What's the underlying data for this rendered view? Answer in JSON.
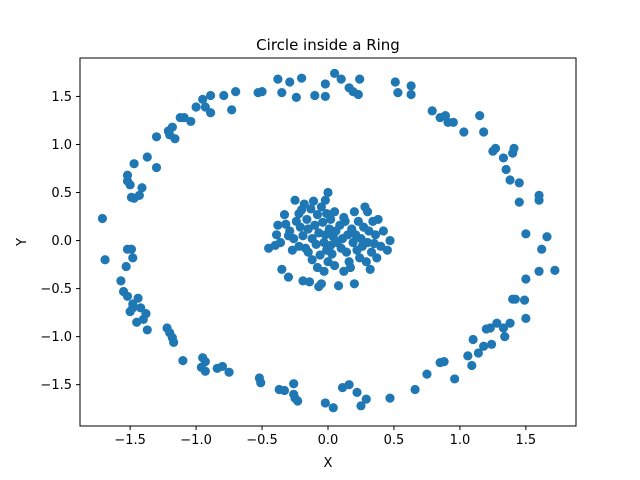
{
  "chart_data": {
    "type": "scatter",
    "title": "Circle inside a Ring",
    "xlabel": "X",
    "ylabel": "Y",
    "xlim": [
      -1.88,
      1.88
    ],
    "ylim": [
      -1.93,
      1.9
    ],
    "xticks": [
      -1.5,
      -1.0,
      -0.5,
      0.0,
      0.5,
      1.0,
      1.5
    ],
    "yticks": [
      -1.5,
      -1.0,
      -0.5,
      0.0,
      0.5,
      1.0,
      1.5
    ],
    "xtick_labels": [
      "−1.5",
      "−1.0",
      "−0.5",
      "0.0",
      "0.5",
      "1.0",
      "1.5"
    ],
    "ytick_labels": [
      "−1.5",
      "−1.0",
      "−0.5",
      "0.0",
      "0.5",
      "1.0",
      "1.5"
    ],
    "grid": false,
    "marker_color": "#1f77b4",
    "series": [
      {
        "points": [
          [
            -1.71,
            0.23
          ],
          [
            -1.69,
            -0.2
          ],
          [
            -1.57,
            -0.42
          ],
          [
            -1.55,
            -0.53
          ],
          [
            -1.53,
            -0.27
          ],
          [
            -1.52,
            -0.09
          ],
          [
            -1.49,
            -0.09
          ],
          [
            -1.48,
            -0.18
          ],
          [
            -1.52,
            0.68
          ],
          [
            -1.52,
            0.62
          ],
          [
            -1.5,
            0.58
          ],
          [
            -1.49,
            0.45
          ],
          [
            -1.47,
            0.44
          ],
          [
            -1.43,
            0.47
          ],
          [
            -1.41,
            0.55
          ],
          [
            -1.47,
            0.8
          ],
          [
            -1.52,
            -0.58
          ],
          [
            -1.48,
            -0.66
          ],
          [
            -1.44,
            -0.6
          ],
          [
            -1.42,
            -0.7
          ],
          [
            -1.5,
            -0.74
          ],
          [
            -1.48,
            -0.7
          ],
          [
            -1.45,
            -0.85
          ],
          [
            -1.4,
            -0.82
          ],
          [
            -1.38,
            -0.76
          ],
          [
            -1.37,
            -0.93
          ],
          [
            -1.37,
            0.87
          ],
          [
            -1.3,
            0.76
          ],
          [
            -1.3,
            1.08
          ],
          [
            -1.21,
            1.14
          ],
          [
            -1.18,
            1.18
          ],
          [
            -1.2,
            1.1
          ],
          [
            -1.16,
            1.06
          ],
          [
            -1.12,
            1.28
          ],
          [
            -1.09,
            1.28
          ],
          [
            -1.04,
            1.24
          ],
          [
            -1.0,
            1.39
          ],
          [
            -0.95,
            1.47
          ],
          [
            -0.93,
            1.39
          ],
          [
            -0.89,
            1.33
          ],
          [
            -0.89,
            1.51
          ],
          [
            -0.79,
            1.51
          ],
          [
            -0.73,
            1.36
          ],
          [
            -0.7,
            1.55
          ],
          [
            -0.53,
            1.54
          ],
          [
            -0.5,
            1.55
          ],
          [
            -0.38,
            1.68
          ],
          [
            -0.35,
            1.54
          ],
          [
            -0.29,
            1.65
          ],
          [
            -0.24,
            1.49
          ],
          [
            -0.2,
            1.69
          ],
          [
            -0.1,
            1.51
          ],
          [
            -0.02,
            1.5
          ],
          [
            -0.02,
            1.63
          ],
          [
            0.05,
            1.74
          ],
          [
            0.1,
            1.68
          ],
          [
            0.16,
            1.59
          ],
          [
            0.19,
            1.55
          ],
          [
            0.24,
            1.68
          ],
          [
            0.23,
            1.52
          ],
          [
            0.51,
            1.65
          ],
          [
            0.53,
            1.54
          ],
          [
            0.63,
            1.61
          ],
          [
            0.63,
            1.52
          ],
          [
            0.79,
            1.35
          ],
          [
            0.85,
            1.28
          ],
          [
            0.89,
            1.3
          ],
          [
            0.91,
            1.23
          ],
          [
            0.95,
            1.23
          ],
          [
            1.03,
            1.13
          ],
          [
            1.15,
            1.3
          ],
          [
            1.18,
            1.13
          ],
          [
            1.25,
            0.93
          ],
          [
            1.27,
            0.96
          ],
          [
            1.33,
            0.86
          ],
          [
            1.35,
            0.74
          ],
          [
            1.38,
            0.63
          ],
          [
            1.4,
            0.91
          ],
          [
            1.41,
            0.96
          ],
          [
            1.45,
            0.6
          ],
          [
            1.45,
            0.4
          ],
          [
            1.5,
            0.07
          ],
          [
            1.6,
            0.47
          ],
          [
            1.6,
            0.42
          ],
          [
            1.62,
            -0.09
          ],
          [
            1.6,
            -0.32
          ],
          [
            1.66,
            0.04
          ],
          [
            1.72,
            -0.31
          ],
          [
            -1.22,
            -0.91
          ],
          [
            -1.2,
            -0.96
          ],
          [
            -1.18,
            -1.01
          ],
          [
            -1.17,
            -1.06
          ],
          [
            -1.1,
            -1.25
          ],
          [
            -0.95,
            -1.22
          ],
          [
            -0.93,
            -1.26
          ],
          [
            -0.96,
            -1.32
          ],
          [
            -0.93,
            -1.36
          ],
          [
            -0.84,
            -1.33
          ],
          [
            -0.8,
            -1.31
          ],
          [
            -0.75,
            -1.37
          ],
          [
            -0.52,
            -1.43
          ],
          [
            -0.51,
            -1.48
          ],
          [
            -0.37,
            -1.55
          ],
          [
            -0.33,
            -1.56
          ],
          [
            -0.26,
            -1.49
          ],
          [
            -0.26,
            -1.6
          ],
          [
            -0.25,
            -1.64
          ],
          [
            -0.23,
            -1.67
          ],
          [
            -0.02,
            -1.69
          ],
          [
            0.04,
            -1.74
          ],
          [
            0.11,
            -1.53
          ],
          [
            0.16,
            -1.5
          ],
          [
            0.22,
            -1.58
          ],
          [
            0.25,
            -1.72
          ],
          [
            0.29,
            -1.65
          ],
          [
            0.47,
            -1.64
          ],
          [
            0.66,
            -1.55
          ],
          [
            0.75,
            -1.39
          ],
          [
            0.85,
            -1.27
          ],
          [
            0.88,
            -1.26
          ],
          [
            0.96,
            -1.44
          ],
          [
            1.06,
            -1.2
          ],
          [
            1.09,
            -1.3
          ],
          [
            1.1,
            -1.03
          ],
          [
            1.14,
            -1.17
          ],
          [
            1.18,
            -1.1
          ],
          [
            1.2,
            -0.92
          ],
          [
            1.23,
            -0.91
          ],
          [
            1.24,
            -1.08
          ],
          [
            1.28,
            -0.86
          ],
          [
            1.33,
            -0.91
          ],
          [
            1.34,
            -1.0
          ],
          [
            1.38,
            -0.86
          ],
          [
            1.4,
            -0.61
          ],
          [
            1.42,
            -0.61
          ],
          [
            1.49,
            -0.62
          ],
          [
            1.5,
            -0.81
          ],
          [
            1.5,
            -0.4
          ],
          [
            -0.45,
            -0.08
          ],
          [
            -0.4,
            -0.05
          ],
          [
            -0.39,
            0.06
          ],
          [
            -0.38,
            0.16
          ],
          [
            -0.36,
            -0.02
          ],
          [
            -0.33,
            0.27
          ],
          [
            -0.32,
            0.17
          ],
          [
            -0.3,
            -0.38
          ],
          [
            -0.29,
            0.1
          ],
          [
            -0.27,
            -0.1
          ],
          [
            -0.26,
            0.02
          ],
          [
            -0.25,
            0.42
          ],
          [
            -0.24,
            0.2
          ],
          [
            -0.22,
            0.28
          ],
          [
            -0.22,
            -0.06
          ],
          [
            -0.21,
            0.14
          ],
          [
            -0.2,
            0.32
          ],
          [
            -0.19,
            0.05
          ],
          [
            -0.19,
            -0.42
          ],
          [
            -0.18,
            0.38
          ],
          [
            -0.17,
            -0.08
          ],
          [
            -0.16,
            0.22
          ],
          [
            -0.15,
            0.12
          ],
          [
            -0.15,
            -0.12
          ],
          [
            -0.14,
            -0.43
          ],
          [
            -0.13,
            0.33
          ],
          [
            -0.12,
            0.02
          ],
          [
            -0.12,
            -0.2
          ],
          [
            -0.11,
            0.41
          ],
          [
            -0.1,
            0.16
          ],
          [
            -0.09,
            -0.04
          ],
          [
            -0.08,
            0.27
          ],
          [
            -0.08,
            -0.28
          ],
          [
            -0.07,
            0.08
          ],
          [
            -0.07,
            -0.48
          ],
          [
            -0.06,
            -0.15
          ],
          [
            -0.05,
            0.35
          ],
          [
            -0.05,
            -0.45
          ],
          [
            -0.04,
            0.19
          ],
          [
            -0.03,
            -0.02
          ],
          [
            -0.03,
            -0.32
          ],
          [
            -0.02,
            0.06
          ],
          [
            -0.01,
            0.28
          ],
          [
            -0.01,
            -0.1
          ],
          [
            0.0,
            0.5
          ],
          [
            0.0,
            -0.22
          ],
          [
            0.01,
            0.12
          ],
          [
            0.02,
            -0.05
          ],
          [
            0.02,
            0.22
          ],
          [
            0.03,
            -0.14
          ],
          [
            0.04,
            0.04
          ],
          [
            0.05,
            0.3
          ],
          [
            0.05,
            -0.26
          ],
          [
            0.06,
            0.1
          ],
          [
            0.07,
            -0.02
          ],
          [
            0.08,
            -0.47
          ],
          [
            0.09,
            0.16
          ],
          [
            0.1,
            -0.08
          ],
          [
            0.11,
            0.02
          ],
          [
            0.12,
            -0.32
          ],
          [
            0.13,
            0.2
          ],
          [
            0.14,
            -0.12
          ],
          [
            0.15,
            0.06
          ],
          [
            0.16,
            -0.22
          ],
          [
            0.17,
            -0.28
          ],
          [
            0.18,
            0.12
          ],
          [
            0.19,
            -0.02
          ],
          [
            0.2,
            -0.45
          ],
          [
            0.21,
            0.06
          ],
          [
            0.22,
            -0.1
          ],
          [
            0.23,
            0.2
          ],
          [
            0.24,
            -0.18
          ],
          [
            0.25,
            0.02
          ],
          [
            0.26,
            -0.06
          ],
          [
            0.27,
            0.14
          ],
          [
            0.28,
            0.35
          ],
          [
            0.29,
            -0.22
          ],
          [
            0.3,
            0.3
          ],
          [
            0.3,
            -0.02
          ],
          [
            0.31,
            0.1
          ],
          [
            0.32,
            -0.3
          ],
          [
            0.33,
            -0.12
          ],
          [
            0.34,
            0.2
          ],
          [
            0.35,
            -0.03
          ],
          [
            0.36,
            0.06
          ],
          [
            0.37,
            -0.18
          ],
          [
            0.38,
            0.22
          ],
          [
            0.4,
            -0.06
          ],
          [
            0.42,
            0.1
          ],
          [
            0.45,
            -0.1
          ],
          [
            0.47,
            0.0
          ],
          [
            -0.35,
            -0.3
          ],
          [
            -0.3,
            0.05
          ],
          [
            0.12,
            0.24
          ],
          [
            -0.02,
            0.42
          ],
          [
            0.2,
            0.3
          ]
        ]
      }
    ]
  }
}
